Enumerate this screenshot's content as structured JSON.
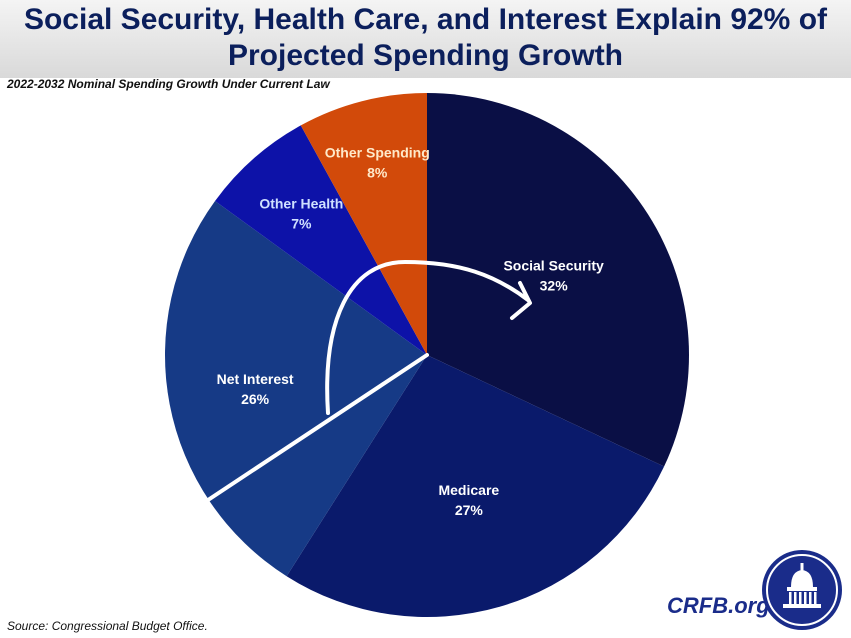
{
  "header": {
    "title_line1": "Social Security, Health Care, and Interest Explain 92% of",
    "title_line2": "Projected Spending Growth",
    "subtitle": "2022-2032 Nominal Spending Growth Under Current Law"
  },
  "footer": {
    "source": "Source: Congressional Budget Office.",
    "brand": "CRFB.org"
  },
  "chart_data": {
    "type": "pie",
    "title": "Social Security, Health Care, and Interest Explain 92% of Projected Spending Growth",
    "subtitle": "2022-2032 Nominal Spending Growth Under Current Law",
    "slices": [
      {
        "label": "Social Security",
        "value": 32,
        "value_label": "32%",
        "color": "#0a0f45",
        "label_color": "#ffffff"
      },
      {
        "label": "Medicare",
        "value": 27,
        "value_label": "27%",
        "color": "#0a1a6b",
        "label_color": "#ffffff"
      },
      {
        "label": "Net Interest",
        "value": 26,
        "value_label": "26%",
        "color": "#163a86",
        "label_color": "#ffffff"
      },
      {
        "label": "Other Health",
        "value": 7,
        "value_label": "7%",
        "color": "#0d12a8",
        "label_color": "#cfe0ff"
      },
      {
        "label": "Other Spending",
        "value": 8,
        "value_label": "8%",
        "color": "#d24a0a",
        "label_color": "#ffe9c9"
      }
    ],
    "start_angle": "12 o'clock",
    "direction": "clockwise",
    "annotations": [
      "white line splitting Net Interest slice",
      "curved white arrow pointing to Social Security"
    ]
  }
}
